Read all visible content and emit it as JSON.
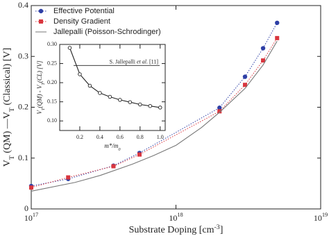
{
  "chart_data": [
    {
      "type": "line",
      "x_label": [
        {
          "text": "Substrate Doping [cm"
        },
        {
          "text": "-3",
          "baseline": "super"
        },
        {
          "text": "]"
        }
      ],
      "y_label": [
        {
          "text": "V"
        },
        {
          "text": "T",
          "baseline": "sub"
        },
        {
          "text": " (QM) —V"
        },
        {
          "text": "T",
          "baseline": "sub"
        },
        {
          "text": " (Classical) [V]"
        }
      ],
      "xscale": "log",
      "xlim": [
        1e+17,
        1e+19
      ],
      "xticks": [
        {
          "value": 1e+17,
          "label": "10",
          "exponent": "17"
        },
        {
          "value": 1e+18,
          "label": "10",
          "exponent": "18"
        },
        {
          "value": 1e+19,
          "label": "10",
          "exponent": "19"
        }
      ],
      "ylim": [
        0,
        0.4
      ],
      "yticks": [
        0,
        0.1,
        0.2,
        0.3,
        0.4
      ],
      "legend": "upper left",
      "series": [
        {
          "name": "Effective Potential",
          "color": "#2e3fa6",
          "marker": "circle",
          "line": "dotted",
          "x": [
            1e+17,
            1.8e+17,
            3.7e+17,
            5.6e+17,
            2e+18,
            3e+18,
            4e+18,
            5e+18
          ],
          "values": [
            0.045,
            0.059,
            0.085,
            0.11,
            0.199,
            0.26,
            0.316,
            0.366
          ]
        },
        {
          "name": "Density Gradient",
          "color": "#d9363e",
          "marker": "square",
          "line": "dotted",
          "x": [
            1e+17,
            1.8e+17,
            3.7e+17,
            5.6e+17,
            2e+18,
            3e+18,
            4e+18,
            5e+18
          ],
          "values": [
            0.042,
            0.062,
            0.084,
            0.107,
            0.192,
            0.244,
            0.292,
            0.336
          ]
        },
        {
          "name": "Jallepalli (Poisson-Schrodinger)",
          "color": "#777777",
          "marker": "none",
          "line": "solid",
          "x": [
            1e+17,
            2e+17,
            3e+17,
            5e+17,
            7e+17,
            1e+18,
            1.5e+18,
            2e+18,
            3e+18,
            4e+18,
            5e+18
          ],
          "values": [
            0.035,
            0.052,
            0.066,
            0.088,
            0.105,
            0.125,
            0.16,
            0.19,
            0.237,
            0.283,
            0.33
          ]
        }
      ]
    },
    {
      "type": "line",
      "x_label": [
        {
          "text": "m*/m",
          "style": "italic"
        },
        {
          "text": "0",
          "baseline": "sub",
          "style": "italic"
        }
      ],
      "y_label": [
        {
          "text": "V",
          "style": "italic"
        },
        {
          "text": "T",
          "baseline": "sub",
          "style": "italic"
        },
        {
          "text": "(QM) - V",
          "style": "italic"
        },
        {
          "text": "T",
          "baseline": "sub",
          "style": "italic"
        },
        {
          "text": "(CL) [V]",
          "style": "italic"
        }
      ],
      "xlim": [
        0,
        1.05
      ],
      "xticks": [
        0.2,
        0.4,
        0.6,
        0.8,
        {
          "value": 1,
          "label": "1.0"
        }
      ],
      "ylim": [
        0.075,
        0.3
      ],
      "yticks": [
        {
          "value": 0.1,
          "label": "0.10"
        },
        {
          "value": 0.15,
          "label": "0.15"
        },
        {
          "value": 0.2,
          "label": "0.20"
        },
        {
          "value": 0.25,
          "label": "0.25"
        },
        {
          "value": 0.3,
          "label": "0.30"
        }
      ],
      "series": [
        {
          "color": "#222222",
          "marker": "open-circle",
          "line": "solid",
          "x": [
            0.1,
            0.2,
            0.3,
            0.4,
            0.5,
            0.6,
            0.7,
            0.8,
            0.9,
            1.0
          ],
          "values": [
            0.291,
            0.222,
            0.192,
            0.173,
            0.163,
            0.155,
            0.149,
            0.143,
            0.139,
            0.135
          ]
        }
      ],
      "reference_line": {
        "value": 0.245,
        "label": [
          {
            "text": "S. Jallepalli "
          },
          {
            "text": "et al.",
            "style": "italic"
          },
          {
            "text": " [11]"
          }
        ]
      }
    }
  ]
}
